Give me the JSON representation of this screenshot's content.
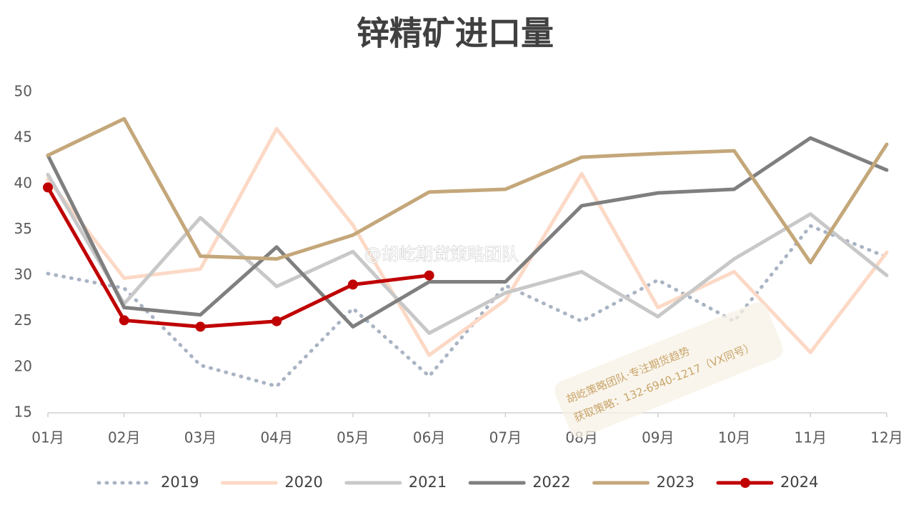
{
  "chart_data": {
    "type": "line",
    "title": "锌精矿进口量",
    "categories": [
      "01月",
      "02月",
      "03月",
      "04月",
      "05月",
      "06月",
      "07月",
      "08月",
      "09月",
      "10月",
      "11月",
      "12月"
    ],
    "ylim": [
      15,
      50
    ],
    "yticks": [
      15,
      20,
      25,
      30,
      35,
      40,
      45,
      50
    ],
    "grid": false,
    "legend": "bottom",
    "series": [
      {
        "name": "2019",
        "color": "#a9b4c4",
        "style": "dotted",
        "values": [
          30.2,
          28.6,
          20.2,
          17.9,
          26.4,
          19.0,
          28.9,
          25.0,
          29.5,
          25.0,
          35.4,
          32.0
        ]
      },
      {
        "name": "2020",
        "color": "#fcd9c6",
        "style": "solid",
        "values": [
          40.5,
          29.7,
          30.7,
          46.0,
          35.5,
          21.3,
          27.3,
          41.1,
          26.5,
          30.4,
          21.6,
          32.5
        ]
      },
      {
        "name": "2021",
        "color": "#c8c8c8",
        "style": "solid",
        "values": [
          41.0,
          26.9,
          36.3,
          28.8,
          32.6,
          23.7,
          28.1,
          30.4,
          25.5,
          31.8,
          36.7,
          30.0
        ]
      },
      {
        "name": "2022",
        "color": "#7f7f7f",
        "style": "solid",
        "values": [
          43.1,
          26.5,
          25.7,
          33.1,
          24.4,
          29.3,
          29.3,
          37.6,
          39.0,
          39.4,
          45.0,
          41.5
        ]
      },
      {
        "name": "2023",
        "color": "#c4a77a",
        "style": "solid",
        "values": [
          43.1,
          47.1,
          32.1,
          31.8,
          34.4,
          39.1,
          39.4,
          42.9,
          43.3,
          43.6,
          31.4,
          44.3
        ]
      },
      {
        "name": "2024",
        "color": "#c00000",
        "style": "solid",
        "markers": true,
        "values": [
          39.6,
          25.1,
          24.4,
          25.0,
          29.0,
          30.0,
          null,
          null,
          null,
          null,
          null,
          null
        ]
      }
    ],
    "annotations": [
      "@胡屹期货策略团队",
      "胡屹策略团队·专注期货趋势",
      "获取策略：132-6940-1217（VX同号）"
    ]
  }
}
